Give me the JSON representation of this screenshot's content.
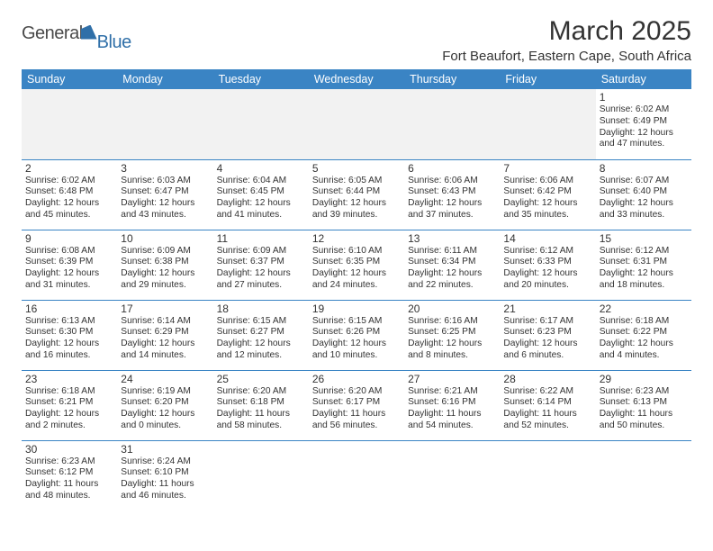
{
  "brand": {
    "text1": "General",
    "text2": "Blue",
    "text_color": "#4a4a4a",
    "accent_color": "#2f6fa8"
  },
  "title": "March 2025",
  "location": "Fort Beaufort, Eastern Cape, South Africa",
  "header_bg": "#3a84c4",
  "header_fg": "#ffffff",
  "border_color": "#3a84c4",
  "blank_bg": "#f2f2f2",
  "text_color": "#333333",
  "font_family": "Arial",
  "title_fontsize": 30,
  "location_fontsize": 15,
  "header_fontsize": 12.5,
  "daynum_fontsize": 12,
  "cell_fontsize": 10.2,
  "columns": [
    "Sunday",
    "Monday",
    "Tuesday",
    "Wednesday",
    "Thursday",
    "Friday",
    "Saturday"
  ],
  "weeks": [
    [
      null,
      null,
      null,
      null,
      null,
      null,
      {
        "n": "1",
        "sr": "Sunrise: 6:02 AM",
        "ss": "Sunset: 6:49 PM",
        "d1": "Daylight: 12 hours",
        "d2": "and 47 minutes."
      }
    ],
    [
      {
        "n": "2",
        "sr": "Sunrise: 6:02 AM",
        "ss": "Sunset: 6:48 PM",
        "d1": "Daylight: 12 hours",
        "d2": "and 45 minutes."
      },
      {
        "n": "3",
        "sr": "Sunrise: 6:03 AM",
        "ss": "Sunset: 6:47 PM",
        "d1": "Daylight: 12 hours",
        "d2": "and 43 minutes."
      },
      {
        "n": "4",
        "sr": "Sunrise: 6:04 AM",
        "ss": "Sunset: 6:45 PM",
        "d1": "Daylight: 12 hours",
        "d2": "and 41 minutes."
      },
      {
        "n": "5",
        "sr": "Sunrise: 6:05 AM",
        "ss": "Sunset: 6:44 PM",
        "d1": "Daylight: 12 hours",
        "d2": "and 39 minutes."
      },
      {
        "n": "6",
        "sr": "Sunrise: 6:06 AM",
        "ss": "Sunset: 6:43 PM",
        "d1": "Daylight: 12 hours",
        "d2": "and 37 minutes."
      },
      {
        "n": "7",
        "sr": "Sunrise: 6:06 AM",
        "ss": "Sunset: 6:42 PM",
        "d1": "Daylight: 12 hours",
        "d2": "and 35 minutes."
      },
      {
        "n": "8",
        "sr": "Sunrise: 6:07 AM",
        "ss": "Sunset: 6:40 PM",
        "d1": "Daylight: 12 hours",
        "d2": "and 33 minutes."
      }
    ],
    [
      {
        "n": "9",
        "sr": "Sunrise: 6:08 AM",
        "ss": "Sunset: 6:39 PM",
        "d1": "Daylight: 12 hours",
        "d2": "and 31 minutes."
      },
      {
        "n": "10",
        "sr": "Sunrise: 6:09 AM",
        "ss": "Sunset: 6:38 PM",
        "d1": "Daylight: 12 hours",
        "d2": "and 29 minutes."
      },
      {
        "n": "11",
        "sr": "Sunrise: 6:09 AM",
        "ss": "Sunset: 6:37 PM",
        "d1": "Daylight: 12 hours",
        "d2": "and 27 minutes."
      },
      {
        "n": "12",
        "sr": "Sunrise: 6:10 AM",
        "ss": "Sunset: 6:35 PM",
        "d1": "Daylight: 12 hours",
        "d2": "and 24 minutes."
      },
      {
        "n": "13",
        "sr": "Sunrise: 6:11 AM",
        "ss": "Sunset: 6:34 PM",
        "d1": "Daylight: 12 hours",
        "d2": "and 22 minutes."
      },
      {
        "n": "14",
        "sr": "Sunrise: 6:12 AM",
        "ss": "Sunset: 6:33 PM",
        "d1": "Daylight: 12 hours",
        "d2": "and 20 minutes."
      },
      {
        "n": "15",
        "sr": "Sunrise: 6:12 AM",
        "ss": "Sunset: 6:31 PM",
        "d1": "Daylight: 12 hours",
        "d2": "and 18 minutes."
      }
    ],
    [
      {
        "n": "16",
        "sr": "Sunrise: 6:13 AM",
        "ss": "Sunset: 6:30 PM",
        "d1": "Daylight: 12 hours",
        "d2": "and 16 minutes."
      },
      {
        "n": "17",
        "sr": "Sunrise: 6:14 AM",
        "ss": "Sunset: 6:29 PM",
        "d1": "Daylight: 12 hours",
        "d2": "and 14 minutes."
      },
      {
        "n": "18",
        "sr": "Sunrise: 6:15 AM",
        "ss": "Sunset: 6:27 PM",
        "d1": "Daylight: 12 hours",
        "d2": "and 12 minutes."
      },
      {
        "n": "19",
        "sr": "Sunrise: 6:15 AM",
        "ss": "Sunset: 6:26 PM",
        "d1": "Daylight: 12 hours",
        "d2": "and 10 minutes."
      },
      {
        "n": "20",
        "sr": "Sunrise: 6:16 AM",
        "ss": "Sunset: 6:25 PM",
        "d1": "Daylight: 12 hours",
        "d2": "and 8 minutes."
      },
      {
        "n": "21",
        "sr": "Sunrise: 6:17 AM",
        "ss": "Sunset: 6:23 PM",
        "d1": "Daylight: 12 hours",
        "d2": "and 6 minutes."
      },
      {
        "n": "22",
        "sr": "Sunrise: 6:18 AM",
        "ss": "Sunset: 6:22 PM",
        "d1": "Daylight: 12 hours",
        "d2": "and 4 minutes."
      }
    ],
    [
      {
        "n": "23",
        "sr": "Sunrise: 6:18 AM",
        "ss": "Sunset: 6:21 PM",
        "d1": "Daylight: 12 hours",
        "d2": "and 2 minutes."
      },
      {
        "n": "24",
        "sr": "Sunrise: 6:19 AM",
        "ss": "Sunset: 6:20 PM",
        "d1": "Daylight: 12 hours",
        "d2": "and 0 minutes."
      },
      {
        "n": "25",
        "sr": "Sunrise: 6:20 AM",
        "ss": "Sunset: 6:18 PM",
        "d1": "Daylight: 11 hours",
        "d2": "and 58 minutes."
      },
      {
        "n": "26",
        "sr": "Sunrise: 6:20 AM",
        "ss": "Sunset: 6:17 PM",
        "d1": "Daylight: 11 hours",
        "d2": "and 56 minutes."
      },
      {
        "n": "27",
        "sr": "Sunrise: 6:21 AM",
        "ss": "Sunset: 6:16 PM",
        "d1": "Daylight: 11 hours",
        "d2": "and 54 minutes."
      },
      {
        "n": "28",
        "sr": "Sunrise: 6:22 AM",
        "ss": "Sunset: 6:14 PM",
        "d1": "Daylight: 11 hours",
        "d2": "and 52 minutes."
      },
      {
        "n": "29",
        "sr": "Sunrise: 6:23 AM",
        "ss": "Sunset: 6:13 PM",
        "d1": "Daylight: 11 hours",
        "d2": "and 50 minutes."
      }
    ],
    [
      {
        "n": "30",
        "sr": "Sunrise: 6:23 AM",
        "ss": "Sunset: 6:12 PM",
        "d1": "Daylight: 11 hours",
        "d2": "and 48 minutes."
      },
      {
        "n": "31",
        "sr": "Sunrise: 6:24 AM",
        "ss": "Sunset: 6:10 PM",
        "d1": "Daylight: 11 hours",
        "d2": "and 46 minutes."
      },
      null,
      null,
      null,
      null,
      null
    ]
  ]
}
